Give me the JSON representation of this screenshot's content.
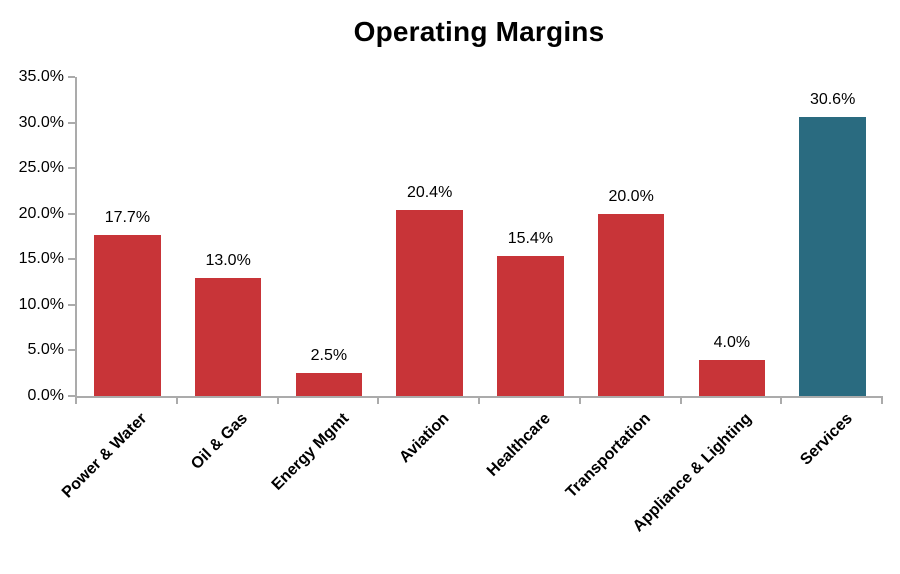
{
  "chart_data": {
    "type": "bar",
    "title": "Operating Margins",
    "categories": [
      "Power & Water",
      "Oil & Gas",
      "Energy Mgmt",
      "Aviation",
      "Healthcare",
      "Transportation",
      "Appliance & Lighting",
      "Services"
    ],
    "values": [
      17.7,
      13.0,
      2.5,
      20.4,
      15.4,
      20.0,
      4.0,
      30.6
    ],
    "value_labels": [
      "17.7%",
      "13.0%",
      "2.5%",
      "20.4%",
      "15.4%",
      "20.0%",
      "4.0%",
      "30.6%"
    ],
    "bar_colors": [
      "#C83438",
      "#C83438",
      "#C83438",
      "#C83438",
      "#C83438",
      "#C83438",
      "#C83438",
      "#2A6B80"
    ],
    "xlabel": "",
    "ylabel": "",
    "ylim": [
      0,
      35
    ],
    "y_tick_values": [
      35,
      30,
      25,
      20,
      15,
      10,
      5,
      0
    ],
    "y_tick_labels": [
      "35.0%",
      "30.0%",
      "25.0%",
      "20.0%",
      "15.0%",
      "10.0%",
      "5.0%",
      "0.0%"
    ],
    "grid": false,
    "legend": false,
    "colors": {
      "bar_default": "#C83438",
      "bar_highlight": "#2A6B80",
      "axis": "#ABABAB",
      "text": "#000000"
    }
  }
}
